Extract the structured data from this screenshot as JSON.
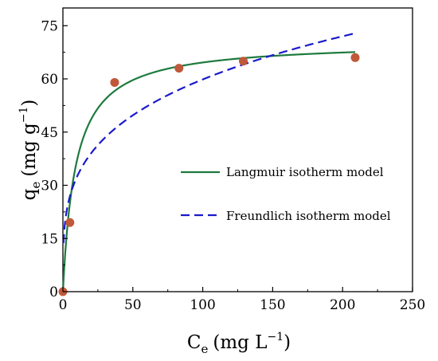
{
  "chart_data": {
    "type": "scatter",
    "xlabel": {
      "base": "C",
      "sub": "e",
      "unit": "(mg L",
      "sup": "−1",
      "close": ")"
    },
    "ylabel": {
      "base": "q",
      "sub": "e",
      "unit": "(mg g",
      "sup": "−1",
      "close": ")"
    },
    "xlim": [
      0,
      250
    ],
    "ylim": [
      0,
      80
    ],
    "xticks": [
      0,
      50,
      100,
      150,
      200,
      250
    ],
    "yticks": [
      0,
      15,
      30,
      45,
      60,
      75
    ],
    "xtick_labels": [
      "0",
      "50",
      "100",
      "150",
      "200",
      "250"
    ],
    "ytick_labels": [
      "0",
      "15",
      "30",
      "45",
      "60",
      "75"
    ],
    "grid": false,
    "legend_position": "right-middle",
    "points": {
      "color": "#c0583a",
      "x": [
        0,
        5,
        37,
        83,
        129,
        209
      ],
      "y": [
        0,
        19.5,
        59,
        63,
        65,
        66
      ]
    },
    "series": [
      {
        "name": "Langmuir isotherm model",
        "style": "solid",
        "color": "#1e7a3e",
        "qmax": 70.5,
        "KL": 0.11,
        "x_range": [
          0,
          209
        ]
      },
      {
        "name": "Freundlich isotherm model",
        "style": "dashed",
        "color": "#1a1acc",
        "KF": 17.5,
        "n_inv": 0.267,
        "x_range": [
          0.4,
          209
        ]
      }
    ]
  }
}
